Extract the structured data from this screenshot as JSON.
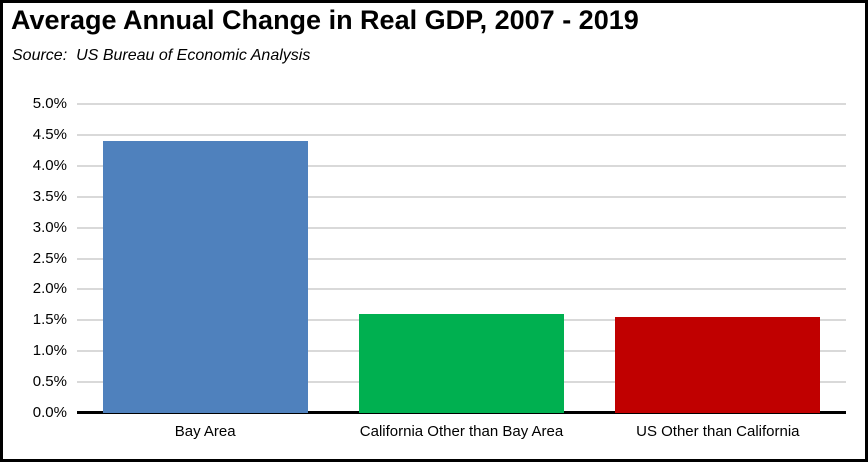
{
  "header": {
    "title": "Average Annual Change in Real GDP, 2007 - 2019",
    "source_label": "Source:",
    "source_text": "US Bureau of Economic Analysis"
  },
  "chart_data": {
    "type": "bar",
    "title": "Average Annual Change in Real GDP, 2007 - 2019",
    "source": "Source: US Bureau of Economic Analysis",
    "categories": [
      "Bay Area",
      "California Other than Bay Area",
      "US Other than California"
    ],
    "values": [
      4.4,
      1.6,
      1.55
    ],
    "value_labels": [
      "4.4%",
      "1.6%",
      "1.55%"
    ],
    "bar_colors": [
      "#4F81BD",
      "#00B050",
      "#C00000"
    ],
    "xlabel": "",
    "ylabel": "",
    "ylim": [
      0,
      5
    ],
    "yticks": [
      {
        "value": 0.0,
        "label": "0.0%"
      },
      {
        "value": 0.5,
        "label": "0.5%"
      },
      {
        "value": 1.0,
        "label": "1.0%"
      },
      {
        "value": 1.5,
        "label": "1.5%"
      },
      {
        "value": 2.0,
        "label": "2.0%"
      },
      {
        "value": 2.5,
        "label": "2.5%"
      },
      {
        "value": 3.0,
        "label": "3.0%"
      },
      {
        "value": 3.5,
        "label": "3.5%"
      },
      {
        "value": 4.0,
        "label": "4.0%"
      },
      {
        "value": 4.5,
        "label": "4.5%"
      },
      {
        "value": 5.0,
        "label": "5.0%"
      }
    ],
    "grid": true,
    "legend": false,
    "colors": {
      "gridline": "#d9d9d9",
      "axis": "#000000",
      "text": "#000000",
      "background": "#ffffff",
      "border": "#000000"
    }
  }
}
